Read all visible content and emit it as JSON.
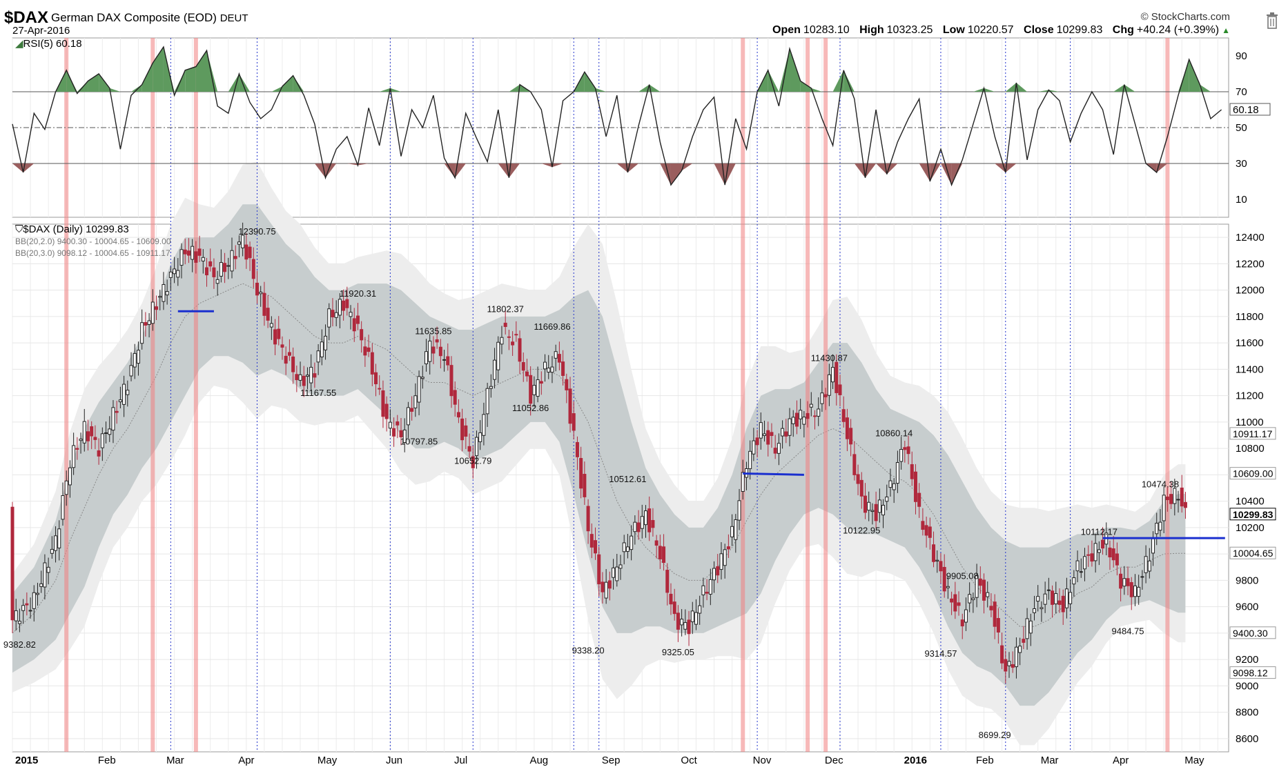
{
  "header": {
    "symbol": "$DAX",
    "name": "German DAX Composite (EOD)",
    "exchange": "DEUT",
    "date": "27-Apr-2016",
    "brand": "© StockCharts.com",
    "ohlc": {
      "open_label": "Open",
      "open": "10283.10",
      "high_label": "High",
      "high": "10323.25",
      "low_label": "Low",
      "low": "10220.57",
      "close_label": "Close",
      "close": "10299.83",
      "chg_label": "Chg",
      "chg": "+40.24 (+0.39%)"
    }
  },
  "chart_data": [
    {
      "type": "line",
      "panel": "rsi",
      "title": "RSI(5) 60.18",
      "current_label": "60.18",
      "ylim": [
        0,
        100
      ],
      "yticks": [
        10,
        30,
        50,
        70,
        90
      ],
      "reference_lines": [
        30,
        50,
        70
      ],
      "overbought": 70,
      "oversold": 30,
      "series": [
        {
          "x": [
            0,
            3,
            6,
            9,
            12,
            15,
            18,
            21,
            24,
            27,
            30,
            33,
            36,
            39,
            42,
            45,
            48,
            51,
            54,
            57,
            60,
            63,
            66,
            69,
            72,
            75,
            78,
            81,
            84,
            87,
            90,
            93,
            96,
            99,
            102,
            105,
            108,
            111,
            114,
            117,
            120,
            123,
            126,
            129,
            132,
            135,
            138,
            141,
            144,
            147,
            150,
            153,
            156,
            159,
            162,
            165,
            168,
            171,
            174,
            177,
            180,
            183,
            186,
            189,
            192,
            195,
            198,
            201,
            204,
            207,
            210,
            213,
            216,
            219,
            222,
            225,
            228,
            231,
            234,
            237,
            240,
            243,
            246,
            249,
            252,
            255,
            258,
            261,
            264,
            267,
            270,
            273,
            276,
            279,
            282,
            285,
            288,
            291,
            294,
            297,
            300,
            303,
            306,
            309,
            312,
            315,
            318,
            321,
            324,
            327,
            330,
            333,
            336
          ],
          "values": [
            52,
            25,
            58,
            49,
            70,
            82,
            69,
            76,
            80,
            72,
            38,
            68,
            74,
            86,
            95,
            68,
            82,
            84,
            93,
            62,
            58,
            80,
            64,
            55,
            60,
            73,
            79,
            68,
            52,
            22,
            38,
            45,
            29,
            61,
            40,
            72,
            34,
            60,
            50,
            68,
            33,
            22,
            58,
            44,
            31,
            60,
            22,
            74,
            70,
            60,
            28,
            65,
            70,
            81,
            72,
            45,
            68,
            25,
            51,
            74,
            42,
            18,
            26,
            45,
            60,
            67,
            18,
            55,
            38,
            70,
            82,
            62,
            94,
            76,
            72,
            55,
            40,
            82,
            66,
            22,
            60,
            24,
            42,
            55,
            66,
            20,
            38,
            18,
            32,
            52,
            72,
            45,
            25,
            75,
            32,
            60,
            71,
            65,
            42,
            58,
            70,
            60,
            35,
            74,
            52,
            30,
            25,
            45,
            68,
            88,
            74,
            55,
            60
          ]
        }
      ]
    },
    {
      "type": "candlestick",
      "panel": "price",
      "title": "$DAX (Daily) 10299.83",
      "bb1": "BB(20,2.0) 9400.30 - 10004.65 - 10609.00",
      "bb2": "BB(20,3.0) 9098.12 - 10004.65 - 10911.17",
      "ylim": [
        8500,
        12500
      ],
      "yticks": [
        8600,
        8800,
        9000,
        9200,
        9400,
        9600,
        9800,
        10000,
        10200,
        10400,
        10600,
        10800,
        11000,
        11200,
        11400,
        11600,
        11800,
        12000,
        12200,
        12400
      ],
      "right_labels": [
        "10911.17",
        "10609.00",
        "10299.83",
        "10004.65",
        "9400.30",
        "9098.12"
      ],
      "right_values": [
        10911.17,
        10609.0,
        10299.83,
        10004.65,
        9400.3,
        9098.12
      ],
      "xlim": [
        0,
        338
      ],
      "month_labels": [
        "2015",
        "Feb",
        "Mar",
        "Apr",
        "May",
        "Jun",
        "Jul",
        "Aug",
        "Sep",
        "Oct",
        "Nov",
        "Dec",
        "2016",
        "Feb",
        "Mar",
        "Apr",
        "May"
      ],
      "month_x": [
        0,
        23,
        42,
        62,
        84,
        103,
        122,
        143,
        163,
        185,
        205,
        225,
        247,
        267,
        285,
        305,
        325
      ],
      "annotations": [
        {
          "text": "12390.75",
          "x": 68,
          "y": 12390.75
        },
        {
          "text": "11920.31",
          "x": 96,
          "y": 11920.31
        },
        {
          "text": "11635.85",
          "x": 117,
          "y": 11635.85
        },
        {
          "text": "11802.37",
          "x": 137,
          "y": 11802.37
        },
        {
          "text": "11669.86",
          "x": 150,
          "y": 11669.86
        },
        {
          "text": "11167.55",
          "x": 85,
          "y": 11167.55
        },
        {
          "text": "11052.86",
          "x": 144,
          "y": 11052.86
        },
        {
          "text": "10797.85",
          "x": 113,
          "y": 10797.85
        },
        {
          "text": "10652.79",
          "x": 128,
          "y": 10652.79
        },
        {
          "text": "10512.61",
          "x": 171,
          "y": 10512.61
        },
        {
          "text": "11430.87",
          "x": 227,
          "y": 11430.87
        },
        {
          "text": "10860.14",
          "x": 245,
          "y": 10860.14
        },
        {
          "text": "10122.95",
          "x": 236,
          "y": 10122.95
        },
        {
          "text": "9905.08",
          "x": 264,
          "y": 9905.08
        },
        {
          "text": "9314.57",
          "x": 258,
          "y": 9314.57
        },
        {
          "text": "8699.29",
          "x": 273,
          "y": 8699.29
        },
        {
          "text": "10112.17",
          "x": 302,
          "y": 10112.17
        },
        {
          "text": "10474.38",
          "x": 319,
          "y": 10474.38
        },
        {
          "text": "9484.75",
          "x": 310,
          "y": 9484.75
        },
        {
          "text": "9382.82",
          "x": 2,
          "y": 9382.82
        },
        {
          "text": "9338.20",
          "x": 160,
          "y": 9338.2
        },
        {
          "text": "9325.05",
          "x": 185,
          "y": 9325.05
        }
      ],
      "trend_lines": [
        {
          "x1": 46,
          "y1": 11840,
          "x2": 56,
          "y2": 11840
        },
        {
          "x1": 203,
          "y1": 10610,
          "x2": 220,
          "y2": 10600
        },
        {
          "x1": 303,
          "y1": 10120,
          "x2": 337,
          "y2": 10120
        }
      ],
      "red_vlines": [
        15,
        39,
        51,
        203,
        221,
        226,
        321
      ],
      "blue_vlines": [
        44,
        68,
        105,
        128,
        156,
        163,
        207,
        230,
        258,
        276,
        294
      ],
      "close": {
        "x": [
          0,
          6,
          12,
          16,
          20,
          24,
          28,
          32,
          36,
          40,
          44,
          48,
          52,
          56,
          60,
          64,
          68,
          72,
          76,
          80,
          84,
          88,
          92,
          96,
          100,
          104,
          108,
          112,
          116,
          120,
          124,
          128,
          132,
          136,
          140,
          144,
          148,
          152,
          156,
          160,
          164,
          168,
          172,
          176,
          180,
          184,
          188,
          192,
          196,
          200,
          204,
          208,
          212,
          216,
          220,
          224,
          228,
          232,
          236,
          240,
          244,
          248,
          252,
          256,
          260,
          264,
          268,
          272,
          276,
          280,
          284,
          288,
          292,
          296,
          300,
          304,
          308,
          312,
          316,
          320,
          324,
          326
        ],
        "values": [
          9500,
          9650,
          10100,
          10700,
          10950,
          10800,
          11050,
          11300,
          11700,
          11900,
          12100,
          12300,
          12250,
          12100,
          12200,
          12390,
          12000,
          11700,
          11500,
          11300,
          11400,
          11800,
          11900,
          11700,
          11400,
          11000,
          10900,
          11200,
          11600,
          11500,
          11000,
          10700,
          11200,
          11700,
          11600,
          11200,
          11400,
          11500,
          10900,
          10200,
          9700,
          9900,
          10150,
          10300,
          10000,
          9500,
          9450,
          9700,
          9900,
          10150,
          10700,
          10950,
          10800,
          11000,
          11050,
          11100,
          11400,
          10900,
          10400,
          10300,
          10500,
          10850,
          10300,
          10000,
          9700,
          9500,
          9800,
          9600,
          9100,
          9300,
          9600,
          9700,
          9600,
          9900,
          10000,
          10100,
          9800,
          9700,
          10000,
          10400,
          10450,
          10300
        ]
      },
      "bb_mid": [
        9400,
        9550,
        9800,
        10100,
        10350,
        10600,
        10800,
        10950,
        11150,
        11350,
        11600,
        11800,
        11900,
        11950,
        12000,
        12050,
        12000,
        11950,
        11850,
        11750,
        11650,
        11600,
        11600,
        11650,
        11600,
        11550,
        11450,
        11350,
        11300,
        11300,
        11250,
        11200,
        11250,
        11300,
        11350,
        11400,
        11400,
        11350,
        11200,
        11000,
        10700,
        10400,
        10200,
        10050,
        9950,
        9850,
        9800,
        9800,
        9900,
        10050,
        10250,
        10450,
        10600,
        10700,
        10800,
        10900,
        10950,
        10900,
        10800,
        10700,
        10600,
        10550,
        10450,
        10300,
        10100,
        9900,
        9750,
        9650,
        9550,
        9450,
        9450,
        9500,
        9600,
        9700,
        9750,
        9850,
        9900,
        9900,
        9950,
        10000,
        10005,
        10005
      ],
      "bb2_width": [
        300,
        350,
        450,
        550,
        600,
        550,
        500,
        500,
        500,
        550,
        600,
        600,
        500,
        450,
        500,
        600,
        650,
        550,
        500,
        500,
        450,
        400,
        400,
        400,
        450,
        500,
        550,
        550,
        500,
        450,
        450,
        500,
        500,
        500,
        450,
        400,
        400,
        500,
        750,
        1000,
        1100,
        1000,
        800,
        600,
        500,
        450,
        400,
        400,
        450,
        550,
        700,
        750,
        650,
        550,
        500,
        550,
        650,
        700,
        650,
        550,
        500,
        500,
        550,
        600,
        650,
        650,
        600,
        550,
        550,
        600,
        600,
        550,
        500,
        450,
        400,
        350,
        300,
        280,
        300,
        400,
        450,
        450
      ]
    }
  ]
}
